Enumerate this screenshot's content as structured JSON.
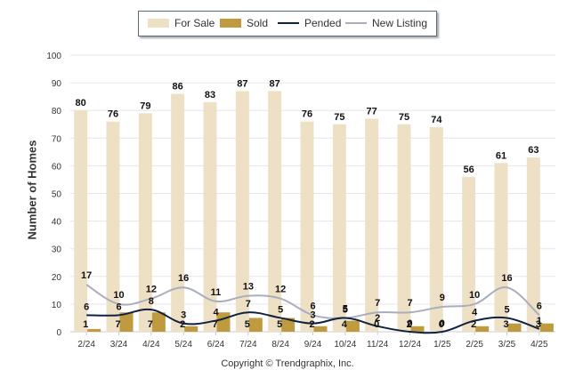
{
  "legend": {
    "for_sale": "For Sale",
    "sold": "Sold",
    "pended": "Pended",
    "new_listing": "New Listing"
  },
  "copyright": "Copyright © Trendgraphix, Inc.",
  "chart_data": {
    "type": "bar",
    "ylabel": "Number of Homes",
    "xlabel": "",
    "ylim": [
      0,
      100
    ],
    "yticks": [
      0,
      10,
      20,
      30,
      40,
      50,
      60,
      70,
      80,
      90,
      100
    ],
    "grid": true,
    "legend_position": "top",
    "categories": [
      "2/24",
      "3/24",
      "4/24",
      "5/24",
      "6/24",
      "7/24",
      "8/24",
      "9/24",
      "10/24",
      "11/24",
      "12/24",
      "1/25",
      "2/25",
      "3/25",
      "4/25"
    ],
    "series": [
      {
        "name": "For Sale",
        "type": "bar",
        "color": "#ede0c4",
        "values": [
          80,
          76,
          79,
          86,
          83,
          87,
          87,
          76,
          75,
          77,
          75,
          74,
          56,
          61,
          63
        ]
      },
      {
        "name": "Sold",
        "type": "bar",
        "color": "#bf9a3e",
        "values": [
          1,
          7,
          7,
          2,
          7,
          5,
          5,
          2,
          4,
          0,
          2,
          0,
          2,
          3,
          3
        ]
      },
      {
        "name": "Pended",
        "type": "line",
        "color": "#0f2240",
        "values": [
          6,
          6,
          8,
          3,
          4,
          7,
          5,
          3,
          5,
          2,
          0,
          0,
          4,
          5,
          1
        ]
      },
      {
        "name": "New Listing",
        "type": "line",
        "color": "#a9aebf",
        "values": [
          17,
          10,
          12,
          16,
          11,
          13,
          12,
          6,
          5,
          7,
          7,
          9,
          10,
          16,
          6
        ]
      }
    ]
  }
}
